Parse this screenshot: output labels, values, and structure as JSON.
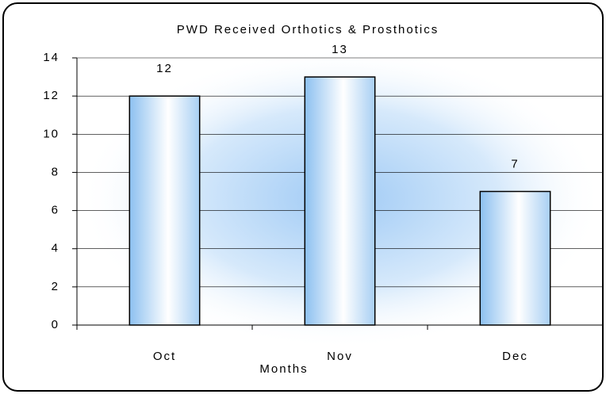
{
  "chart_data": {
    "type": "bar",
    "title": "PWD Received Orthotics & Prosthotics",
    "categories": [
      "Oct",
      "Nov",
      "Dec"
    ],
    "values": [
      12,
      13,
      7
    ],
    "color": "#8cc0f0",
    "x_label": "Months",
    "ylim": [
      0,
      14
    ],
    "yticks": [
      0,
      2,
      4,
      6,
      8,
      10,
      12,
      14
    ],
    "grid": true
  }
}
